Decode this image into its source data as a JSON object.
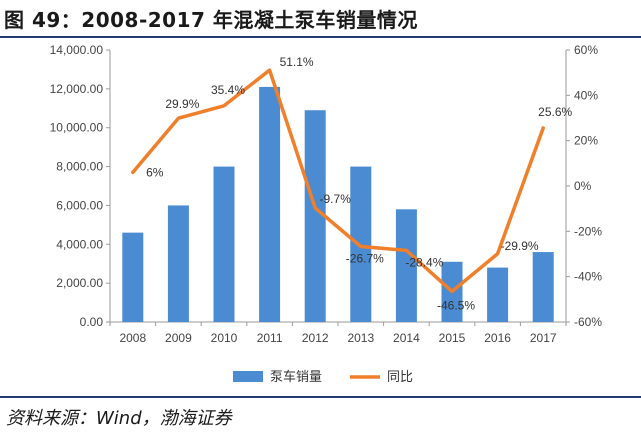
{
  "title": "图 49：2008-2017 年混凝土泵车销量情况",
  "source": "资料来源：Wind，渤海证券",
  "colors": {
    "bar": "#4a8bd1",
    "line": "#f07f2b",
    "rule": "#1f3c73",
    "axis_text": "#444444"
  },
  "chart_data": {
    "type": "bar+line",
    "categories": [
      "2008",
      "2009",
      "2010",
      "2011",
      "2012",
      "2013",
      "2014",
      "2015",
      "2016",
      "2017"
    ],
    "series": [
      {
        "name": "泵车销量",
        "type": "bar",
        "axis": "left",
        "values": [
          4600,
          6000,
          8000,
          12100,
          10900,
          8000,
          5800,
          3100,
          2800,
          3600
        ]
      },
      {
        "name": "同比",
        "type": "line",
        "axis": "right",
        "values": [
          6,
          29.9,
          35.4,
          51.1,
          -9.7,
          -26.7,
          -28.4,
          -46.5,
          -29.9,
          25.6
        ],
        "labels": [
          "6%",
          "29.9%",
          "35.4%",
          "51.1%",
          "-9.7%",
          "-26.7%",
          "-28.4%",
          "-46.5%",
          "-29.9%",
          "25.6%"
        ]
      }
    ],
    "y_left": {
      "ylim": [
        0,
        14000
      ],
      "ticks": [
        0,
        2000,
        4000,
        6000,
        8000,
        10000,
        12000,
        14000
      ],
      "tick_labels": [
        "0.00",
        "2,000.00",
        "4,000.00",
        "6,000.00",
        "8,000.00",
        "10,000.00",
        "12,000.00",
        "14,000.00"
      ]
    },
    "y_right": {
      "ylim": [
        -60,
        60
      ],
      "ticks": [
        -60,
        -40,
        -20,
        0,
        20,
        40,
        60
      ],
      "tick_labels": [
        "-60%",
        "-40%",
        "-20%",
        "0%",
        "20%",
        "40%",
        "60%"
      ]
    },
    "legend_position": "bottom-center",
    "grid": false
  }
}
